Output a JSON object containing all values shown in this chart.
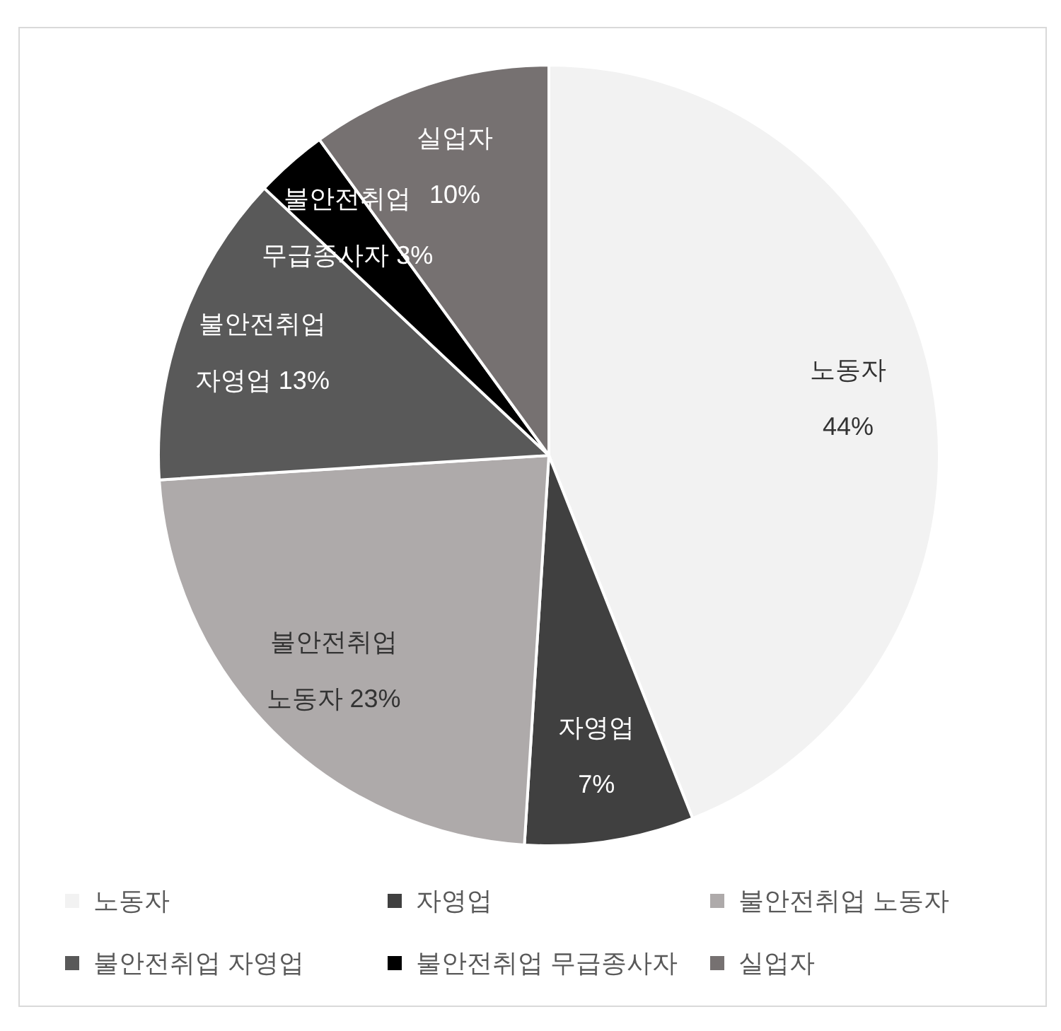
{
  "chart_data": {
    "type": "pie",
    "categories": [
      "노동자",
      "자영업",
      "불안전취업 노동자",
      "불안전취업 자영업",
      "불안전취업 무급종사자",
      "실업자"
    ],
    "values": [
      44,
      7,
      23,
      13,
      3,
      10
    ],
    "colors": [
      "#f2f2f2",
      "#404040",
      "#aeaaaa",
      "#595959",
      "#000000",
      "#767171"
    ],
    "value_labels": [
      "44%",
      "7%",
      "23%",
      "13%",
      "3%",
      "10%"
    ],
    "legend": "bottom"
  }
}
